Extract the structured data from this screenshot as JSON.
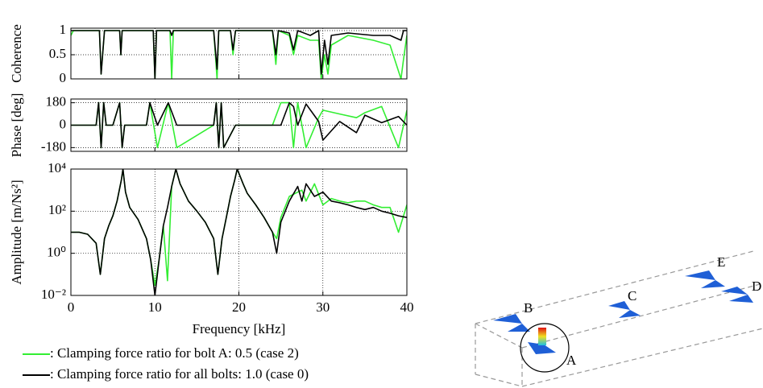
{
  "chart_data": [
    {
      "type": "line",
      "ylabel": "Coherence",
      "x": [
        0,
        0.3,
        0.5,
        3,
        3.4,
        3.6,
        4,
        5.8,
        5.95,
        6.1,
        8,
        9.8,
        10,
        10.2,
        11.8,
        12,
        12.2,
        17,
        17.4,
        17.6,
        19,
        19.3,
        19.6,
        24,
        24.4,
        24.7,
        26,
        26.5,
        27,
        28.5,
        29.5,
        29.8,
        30.2,
        30.6,
        31,
        33,
        36,
        38,
        39.3,
        39.6,
        40
      ],
      "series": [
        {
          "color": "#33ee33",
          "values": [
            0.9,
            1,
            1,
            1,
            1,
            0.1,
            1,
            1,
            0.5,
            1,
            1,
            1,
            0,
            1,
            1,
            0,
            1,
            1,
            0,
            1,
            1,
            0.5,
            1,
            1,
            0.3,
            1,
            0.9,
            0.5,
            0.9,
            0.8,
            0.8,
            0,
            0.5,
            0.1,
            0.7,
            0.9,
            0.8,
            0.7,
            0,
            0.4,
            0.9
          ]
        },
        {
          "color": "#000000",
          "values": [
            1,
            1,
            1,
            1,
            1,
            0.1,
            1,
            1,
            0.5,
            1,
            1,
            1,
            0,
            1,
            1,
            0.9,
            1,
            1,
            0.2,
            1,
            1,
            0.6,
            1,
            1,
            0.5,
            1,
            0.95,
            0.6,
            1,
            0.9,
            1,
            0.1,
            0.8,
            0.3,
            0.9,
            0.95,
            0.9,
            0.9,
            0.8,
            1,
            1
          ]
        }
      ],
      "xlim": [
        0,
        40
      ],
      "xticks": [
        10,
        20,
        30
      ],
      "ylim": [
        0,
        1.05
      ],
      "yticks": [
        0,
        0.5,
        1
      ],
      "grid": true
    },
    {
      "type": "line",
      "ylabel": "Phase [deg]",
      "x": [
        0,
        3,
        3.3,
        3.6,
        3.9,
        4.2,
        5,
        5.8,
        6.1,
        6.4,
        9,
        9.4,
        10.3,
        11.6,
        12.6,
        17,
        17.3,
        17.6,
        17.9,
        18.2,
        19.6,
        20,
        24,
        25,
        26,
        26.5,
        27,
        28,
        29.5,
        30,
        32,
        34,
        35,
        37,
        39,
        40
      ],
      "series": [
        {
          "color": "#33ee33",
          "values": [
            0,
            0,
            180,
            -180,
            180,
            0,
            0,
            180,
            -180,
            0,
            0,
            180,
            -180,
            180,
            -180,
            0,
            180,
            -180,
            180,
            -180,
            0,
            0,
            0,
            180,
            180,
            -180,
            180,
            -180,
            60,
            120,
            90,
            60,
            100,
            150,
            -180,
            120
          ]
        },
        {
          "color": "#000000",
          "values": [
            0,
            0,
            180,
            -180,
            180,
            0,
            0,
            180,
            -180,
            0,
            0,
            180,
            0,
            180,
            0,
            0,
            180,
            -180,
            180,
            -180,
            0,
            0,
            0,
            0,
            180,
            150,
            0,
            170,
            30,
            -120,
            30,
            -60,
            80,
            20,
            70,
            0
          ]
        }
      ],
      "xlim": [
        0,
        40
      ],
      "xticks": [
        10,
        20,
        30
      ],
      "ylim": [
        -210,
        210
      ],
      "yticks": [
        -180,
        0,
        180
      ],
      "grid": true
    },
    {
      "type": "line",
      "ylabel": "Amplitude [m/Ns²]",
      "xlabel": "Frequency [kHz]",
      "ylog": true,
      "x": [
        0,
        1,
        2,
        3,
        3.5,
        4,
        4.5,
        5,
        5.5,
        6,
        6.2,
        6.5,
        7,
        8,
        9,
        9.5,
        10,
        10.5,
        11,
        11.5,
        12,
        12.5,
        13,
        14,
        15,
        16,
        17,
        17.5,
        18,
        18.5,
        19,
        19.5,
        19.8,
        20.5,
        21,
        22,
        23,
        24,
        24.5,
        25,
        26,
        27,
        27.5,
        28,
        29,
        30,
        31,
        32,
        33,
        34,
        35,
        36,
        37,
        38,
        39,
        40
      ],
      "series": [
        {
          "name": ": Clamping force ratio for bolt A: 0.5 (case 2)",
          "color": "#33ee33",
          "values": [
            10,
            10,
            8,
            3,
            0.1,
            5,
            20,
            60,
            300,
            3000,
            10000,
            800,
            150,
            40,
            5,
            0.5,
            0.03,
            0.5,
            20,
            0.05,
            1500,
            10000,
            2000,
            300,
            100,
            30,
            5,
            0.1,
            5,
            50,
            500,
            3000,
            10000,
            2000,
            700,
            200,
            50,
            10,
            5,
            50,
            500,
            800,
            1000,
            300,
            2000,
            200,
            400,
            300,
            250,
            300,
            300,
            200,
            150,
            150,
            10,
            200
          ]
        },
        {
          "name": ": Clamping force ratio for all bolts: 1.0 (case 0)",
          "color": "#000000",
          "values": [
            10,
            10,
            8,
            3,
            0.1,
            5,
            20,
            60,
            300,
            3000,
            10000,
            800,
            150,
            40,
            5,
            0.5,
            0.01,
            0.5,
            20,
            150,
            1500,
            10000,
            2000,
            300,
            100,
            30,
            5,
            0.1,
            5,
            50,
            500,
            3000,
            10000,
            2000,
            700,
            200,
            50,
            10,
            1,
            30,
            300,
            1500,
            300,
            2000,
            500,
            800,
            300,
            250,
            200,
            150,
            120,
            150,
            100,
            80,
            60,
            50
          ]
        }
      ],
      "xlim": [
        0,
        40
      ],
      "xticks": [
        0,
        10,
        20,
        30,
        40
      ],
      "ylim": [
        0.01,
        10000
      ],
      "yticks": [
        {
          "value": 0.01,
          "label": "10⁻²"
        },
        {
          "value": 1,
          "label": "10⁰"
        },
        {
          "value": 100,
          "label": "10²"
        },
        {
          "value": 10000,
          "label": "10⁴"
        }
      ],
      "grid": true
    }
  ],
  "diagram": {
    "labels": [
      "A",
      "B",
      "C",
      "D",
      "E"
    ]
  }
}
